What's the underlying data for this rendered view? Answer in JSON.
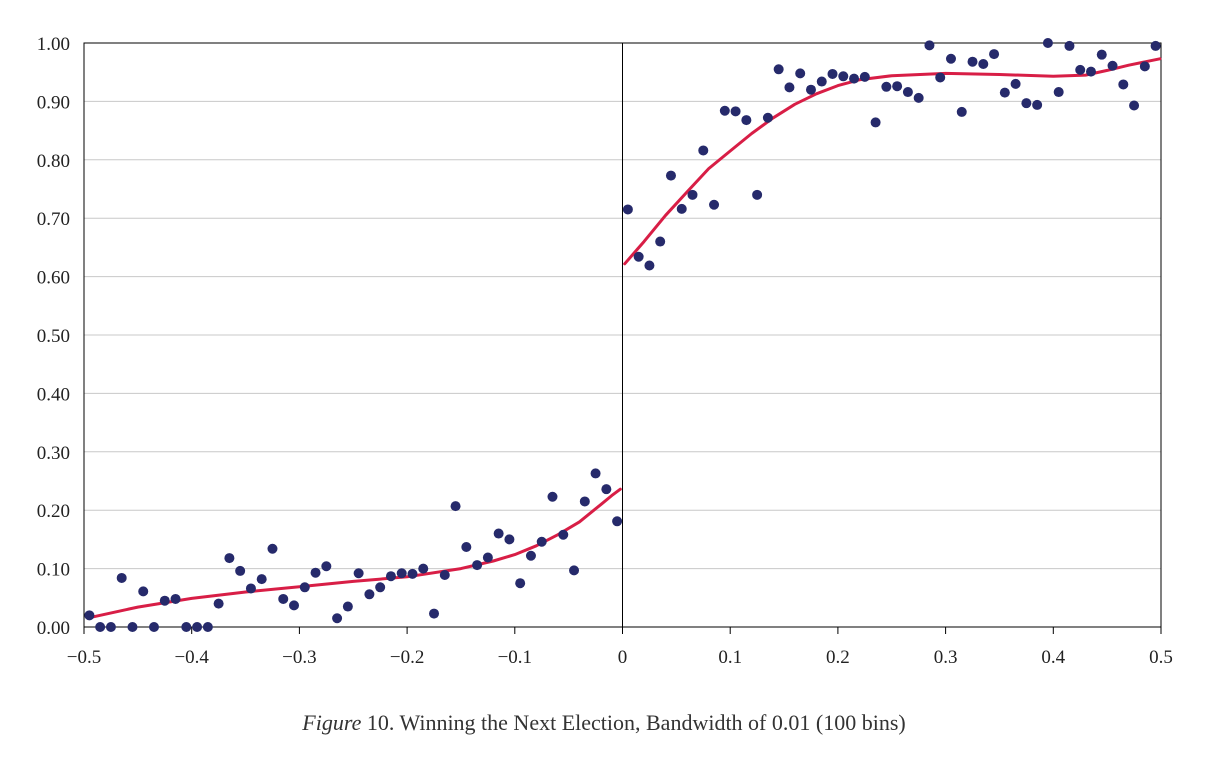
{
  "caption": {
    "figure_word": "Figure",
    "rest": " 10. Winning the Next Election, Bandwidth of 0.01 (100 bins)"
  },
  "colors": {
    "points": "#262a6b",
    "fit_line": "#d81e46",
    "grid": "#c8c8c8",
    "axis": "#000000"
  },
  "chart_data": {
    "type": "scatter",
    "title": "",
    "xlabel": "",
    "ylabel": "",
    "xlim": [
      -0.5,
      0.5
    ],
    "ylim": [
      0.0,
      1.0
    ],
    "grid": "horizontal",
    "x_tick_labels": [
      "−0.5",
      "−0.4",
      "−0.3",
      "−0.2",
      "−0.1",
      "0",
      "0.1",
      "0.2",
      "0.3",
      "0.4",
      "0.5"
    ],
    "x_ticks": [
      -0.5,
      -0.4,
      -0.3,
      -0.2,
      -0.1,
      0,
      0.1,
      0.2,
      0.3,
      0.4,
      0.5
    ],
    "y_tick_labels": [
      "0.00",
      "0.10",
      "0.20",
      "0.30",
      "0.40",
      "0.50",
      "0.60",
      "0.70",
      "0.80",
      "0.90",
      "1.00"
    ],
    "y_ticks": [
      0,
      0.1,
      0.2,
      0.3,
      0.4,
      0.5,
      0.6,
      0.7,
      0.8,
      0.9,
      1.0
    ],
    "cutoff_line_x": 0,
    "points": {
      "x": [
        -0.495,
        -0.485,
        -0.475,
        -0.465,
        -0.455,
        -0.445,
        -0.435,
        -0.425,
        -0.415,
        -0.405,
        -0.395,
        -0.385,
        -0.375,
        -0.365,
        -0.355,
        -0.345,
        -0.335,
        -0.325,
        -0.315,
        -0.305,
        -0.295,
        -0.285,
        -0.275,
        -0.265,
        -0.255,
        -0.245,
        -0.235,
        -0.225,
        -0.215,
        -0.205,
        -0.195,
        -0.185,
        -0.175,
        -0.165,
        -0.155,
        -0.145,
        -0.135,
        -0.125,
        -0.115,
        -0.105,
        -0.095,
        -0.085,
        -0.075,
        -0.065,
        -0.055,
        -0.045,
        -0.035,
        -0.025,
        -0.015,
        -0.005,
        0.005,
        0.015,
        0.025,
        0.035,
        0.045,
        0.055,
        0.065,
        0.075,
        0.085,
        0.095,
        0.105,
        0.115,
        0.125,
        0.135,
        0.145,
        0.155,
        0.165,
        0.175,
        0.185,
        0.195,
        0.205,
        0.215,
        0.225,
        0.235,
        0.245,
        0.255,
        0.265,
        0.275,
        0.285,
        0.295,
        0.305,
        0.315,
        0.325,
        0.335,
        0.345,
        0.355,
        0.365,
        0.375,
        0.385,
        0.395,
        0.405,
        0.415,
        0.425,
        0.435,
        0.445,
        0.455,
        0.465,
        0.475,
        0.485,
        0.495
      ],
      "y": [
        0.02,
        0.0,
        0.0,
        0.084,
        0.0,
        0.061,
        0.0,
        0.045,
        0.048,
        0.0,
        0.0,
        0.0,
        0.04,
        0.118,
        0.096,
        0.066,
        0.082,
        0.134,
        0.048,
        0.037,
        0.068,
        0.093,
        0.104,
        0.015,
        0.035,
        0.092,
        0.056,
        0.068,
        0.087,
        0.092,
        0.091,
        0.1,
        0.023,
        0.089,
        0.207,
        0.137,
        0.106,
        0.119,
        0.16,
        0.15,
        0.075,
        0.122,
        0.146,
        0.223,
        0.158,
        0.097,
        0.215,
        0.263,
        0.236,
        0.181,
        0.715,
        0.634,
        0.619,
        0.66,
        0.773,
        0.716,
        0.74,
        0.816,
        0.723,
        0.884,
        0.883,
        0.868,
        0.74,
        0.872,
        0.955,
        0.924,
        0.948,
        0.92,
        0.934,
        0.947,
        0.943,
        0.939,
        0.942,
        0.864,
        0.925,
        0.926,
        0.916,
        0.906,
        0.996,
        0.941,
        0.973,
        0.882,
        0.968,
        0.964,
        0.981,
        0.915,
        0.93,
        0.897,
        0.894,
        1.0,
        0.916,
        0.995,
        0.954,
        0.951,
        0.98,
        0.961,
        0.929,
        0.893,
        0.96,
        0.995
      ]
    },
    "fit_left": {
      "x": [
        -0.495,
        -0.45,
        -0.4,
        -0.35,
        -0.3,
        -0.25,
        -0.2,
        -0.15,
        -0.12,
        -0.1,
        -0.08,
        -0.06,
        -0.04,
        -0.02,
        -0.01,
        -0.002
      ],
      "y": [
        0.016,
        0.034,
        0.049,
        0.06,
        0.069,
        0.078,
        0.086,
        0.1,
        0.113,
        0.124,
        0.139,
        0.158,
        0.18,
        0.21,
        0.225,
        0.236
      ]
    },
    "fit_right": {
      "x": [
        0.002,
        0.02,
        0.04,
        0.06,
        0.08,
        0.1,
        0.12,
        0.14,
        0.16,
        0.18,
        0.2,
        0.22,
        0.25,
        0.3,
        0.35,
        0.4,
        0.43,
        0.45,
        0.47,
        0.499
      ],
      "y": [
        0.622,
        0.66,
        0.705,
        0.745,
        0.785,
        0.815,
        0.845,
        0.872,
        0.895,
        0.913,
        0.927,
        0.937,
        0.944,
        0.948,
        0.946,
        0.943,
        0.945,
        0.953,
        0.962,
        0.973
      ]
    }
  }
}
